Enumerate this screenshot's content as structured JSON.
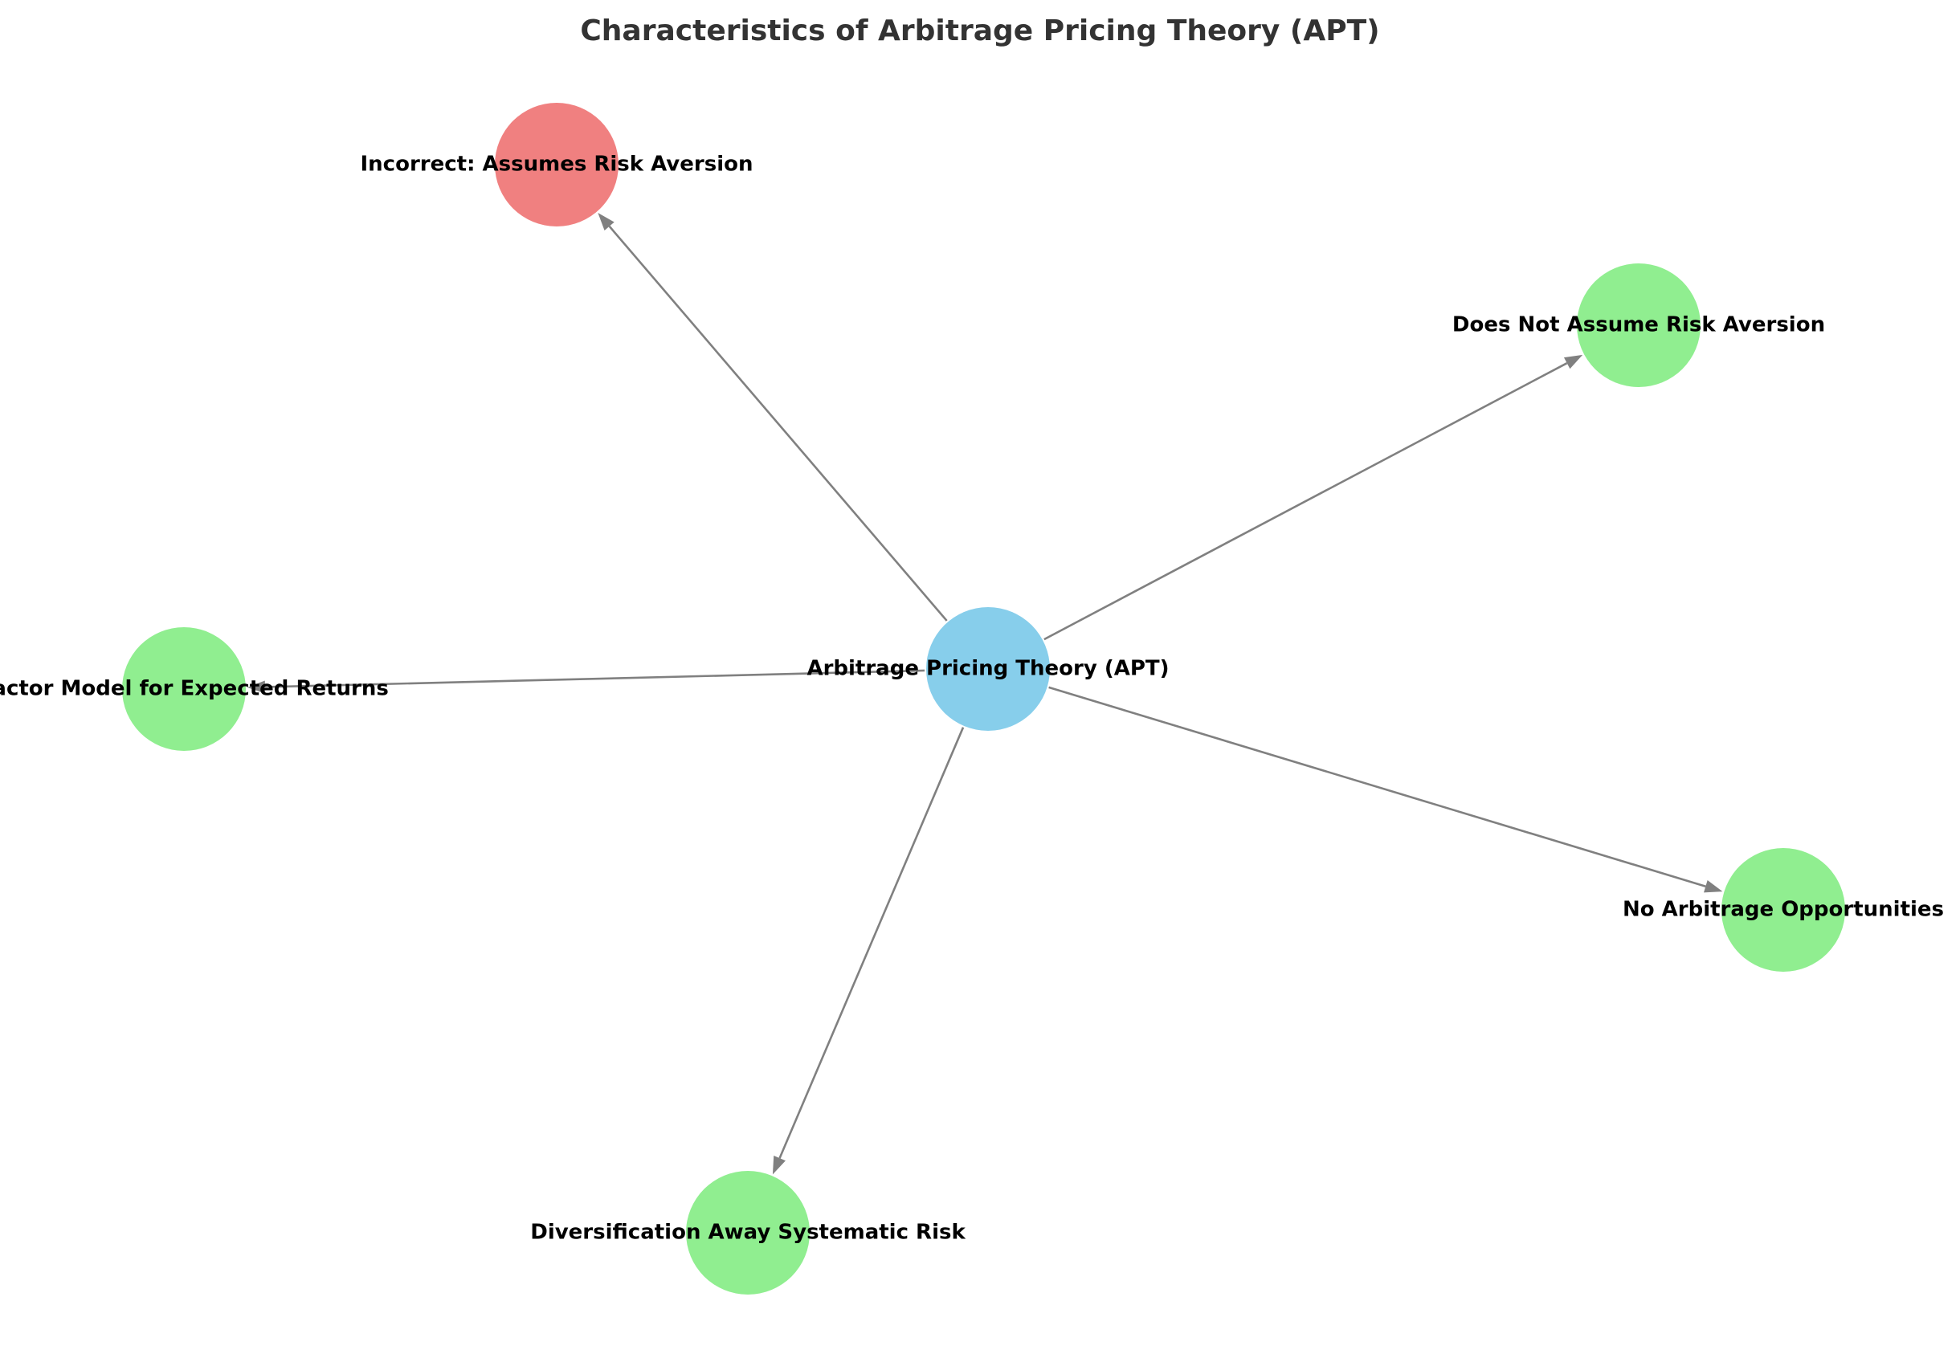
{
  "title": "Characteristics of Arbitrage Pricing Theory (APT)",
  "colors": {
    "center": "#87CEEB",
    "correct": "#90EE90",
    "incorrect": "#F08080",
    "edge": "#808080",
    "title": "#333333"
  },
  "nodes": [
    {
      "id": "apt",
      "label": "Arbitrage Pricing Theory (APT)",
      "kind": "center"
    },
    {
      "id": "incorrect-risk",
      "label": "Incorrect: Assumes Risk Aversion",
      "kind": "incorrect"
    },
    {
      "id": "no-risk-aversion",
      "label": "Does Not Assume Risk Aversion",
      "kind": "correct"
    },
    {
      "id": "factor-model",
      "label": "Factor Model for Expected Returns",
      "kind": "correct"
    },
    {
      "id": "no-arbitrage",
      "label": "No Arbitrage Opportunities",
      "kind": "correct"
    },
    {
      "id": "diversification",
      "label": "Diversification Away Systematic Risk",
      "kind": "correct"
    }
  ],
  "edges": [
    {
      "from": "apt",
      "to": "incorrect-risk"
    },
    {
      "from": "apt",
      "to": "no-risk-aversion"
    },
    {
      "from": "apt",
      "to": "factor-model"
    },
    {
      "from": "apt",
      "to": "no-arbitrage"
    },
    {
      "from": "apt",
      "to": "diversification"
    }
  ]
}
